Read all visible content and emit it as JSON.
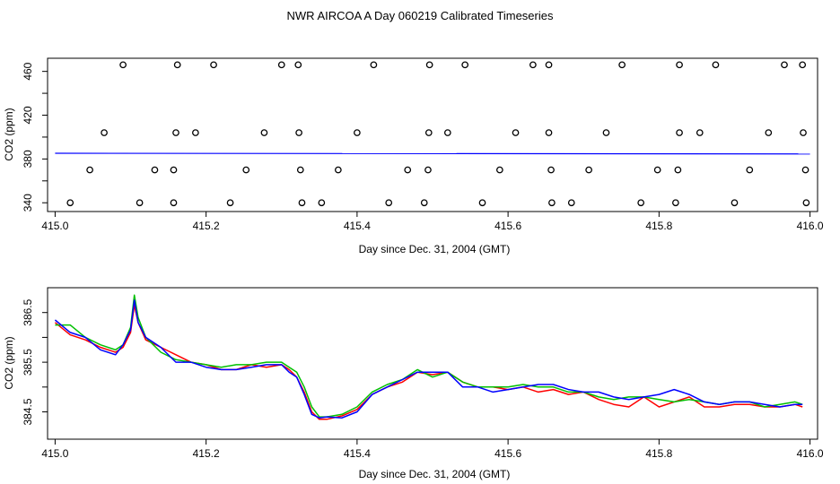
{
  "title": "NWR AIRCOA A  Day 060219  Calibrated Timeseries",
  "colors": {
    "red": "#ff0000",
    "green": "#00c000",
    "blue": "#0000ff",
    "black": "#000000"
  },
  "chart_data": [
    {
      "type": "scatter",
      "name": "raw",
      "xlabel": "Day since Dec. 31, 2004 (GMT)",
      "ylabel": "CO2 (ppm)",
      "xlim": [
        414.99,
        416.01
      ],
      "ylim": [
        332,
        472
      ],
      "xticks": [
        415.0,
        415.2,
        415.4,
        415.6,
        415.8,
        416.0
      ],
      "xtick_labels": [
        "415.0",
        "415.2",
        "415.4",
        "415.6",
        "415.8",
        "416.0"
      ],
      "yticks": [
        340,
        380,
        420,
        460
      ],
      "ytick_labels": [
        "340",
        "380",
        "420",
        "460"
      ],
      "points_x": [
        415.09,
        415.162,
        415.21,
        415.3,
        415.322,
        415.422,
        415.496,
        415.543,
        415.633,
        415.654,
        415.751,
        415.827,
        415.875,
        415.966,
        415.99,
        415.065,
        415.16,
        415.186,
        415.277,
        415.323,
        415.4,
        415.495,
        415.52,
        415.61,
        415.654,
        415.73,
        415.827,
        415.854,
        415.945,
        415.991,
        415.046,
        415.132,
        415.157,
        415.253,
        415.325,
        415.375,
        415.467,
        415.494,
        415.589,
        415.657,
        415.707,
        415.798,
        415.825,
        415.92,
        415.994,
        415.02,
        415.112,
        415.157,
        415.232,
        415.327,
        415.353,
        415.442,
        415.489,
        415.566,
        415.658,
        415.684,
        415.776,
        415.822,
        415.9,
        415.995
      ],
      "points_y": [
        466,
        466,
        466,
        466,
        466,
        466,
        466,
        466,
        466,
        466,
        466,
        466,
        466,
        466,
        466,
        404,
        404,
        404,
        404,
        404,
        404,
        404,
        404,
        404,
        404,
        404,
        404,
        404,
        404,
        404,
        370,
        370,
        370,
        370,
        370,
        370,
        370,
        370,
        370,
        370,
        370,
        370,
        370,
        370,
        370,
        340,
        340,
        340,
        340,
        340,
        340,
        340,
        340,
        340,
        340,
        340,
        340,
        340,
        340,
        340
      ],
      "line_x": [
        415.0,
        416.0
      ],
      "line_y": [
        385.2,
        384.6
      ]
    },
    {
      "type": "line",
      "name": "calibrated",
      "xlabel": "Day since Dec. 31, 2004 (GMT)",
      "ylabel": "CO2 (ppm)",
      "xlim": [
        414.99,
        416.01
      ],
      "ylim": [
        383.95,
        387.0
      ],
      "xticks": [
        415.0,
        415.2,
        415.4,
        415.6,
        415.8,
        416.0
      ],
      "xtick_labels": [
        "415.0",
        "415.2",
        "415.4",
        "415.6",
        "415.8",
        "416.0"
      ],
      "yticks": [
        384.5,
        385.5,
        386.5
      ],
      "ytick_labels": [
        "384.5",
        "385.5",
        "386.5"
      ],
      "x": [
        415.0,
        415.02,
        415.04,
        415.06,
        415.08,
        415.09,
        415.1,
        415.105,
        415.11,
        415.12,
        415.14,
        415.16,
        415.18,
        415.2,
        415.22,
        415.24,
        415.26,
        415.28,
        415.3,
        415.31,
        415.32,
        415.33,
        415.34,
        415.35,
        415.36,
        415.38,
        415.4,
        415.42,
        415.44,
        415.46,
        415.48,
        415.5,
        415.52,
        415.54,
        415.56,
        415.58,
        415.6,
        415.62,
        415.64,
        415.66,
        415.68,
        415.7,
        415.72,
        415.74,
        415.76,
        415.78,
        415.8,
        415.82,
        415.84,
        415.86,
        415.88,
        415.9,
        415.92,
        415.94,
        415.96,
        415.98,
        415.99
      ],
      "series": [
        {
          "name": "red",
          "color": "#ff0000",
          "values": [
            386.3,
            386.05,
            385.95,
            385.8,
            385.7,
            385.8,
            386.1,
            386.65,
            386.3,
            385.95,
            385.8,
            385.65,
            385.5,
            385.45,
            385.35,
            385.35,
            385.45,
            385.4,
            385.45,
            385.35,
            385.2,
            384.9,
            384.5,
            384.35,
            384.35,
            384.42,
            384.55,
            384.85,
            385.0,
            385.1,
            385.3,
            385.25,
            385.3,
            385.1,
            385.0,
            385.0,
            384.95,
            385.0,
            384.9,
            384.95,
            384.85,
            384.9,
            384.75,
            384.65,
            384.6,
            384.8,
            384.6,
            384.7,
            384.8,
            384.6,
            384.6,
            384.65,
            384.65,
            384.6,
            384.6,
            384.65,
            384.6
          ]
        },
        {
          "name": "green",
          "color": "#00c000",
          "values": [
            386.25,
            386.25,
            386.0,
            385.85,
            385.75,
            385.85,
            386.2,
            386.85,
            386.4,
            386.0,
            385.7,
            385.55,
            385.5,
            385.45,
            385.4,
            385.45,
            385.45,
            385.5,
            385.5,
            385.4,
            385.3,
            385.0,
            384.6,
            384.4,
            384.4,
            384.45,
            384.6,
            384.9,
            385.05,
            385.15,
            385.35,
            385.2,
            385.3,
            385.1,
            385.0,
            385.0,
            385.0,
            385.05,
            385.0,
            385.0,
            384.9,
            384.9,
            384.8,
            384.75,
            384.8,
            384.8,
            384.75,
            384.7,
            384.75,
            384.7,
            384.65,
            384.7,
            384.7,
            384.6,
            384.65,
            384.7,
            384.65
          ]
        },
        {
          "name": "blue",
          "color": "#0000ff",
          "values": [
            386.35,
            386.1,
            386.0,
            385.75,
            385.65,
            385.85,
            386.15,
            386.75,
            386.3,
            386.0,
            385.8,
            385.5,
            385.5,
            385.4,
            385.35,
            385.35,
            385.4,
            385.45,
            385.45,
            385.3,
            385.2,
            384.85,
            384.45,
            384.38,
            384.4,
            384.38,
            384.5,
            384.85,
            385.0,
            385.15,
            385.3,
            385.3,
            385.3,
            385.0,
            385.0,
            384.9,
            384.95,
            385.0,
            385.05,
            385.05,
            384.95,
            384.9,
            384.9,
            384.8,
            384.75,
            384.8,
            384.85,
            384.95,
            384.85,
            384.7,
            384.65,
            384.7,
            384.7,
            384.65,
            384.6,
            384.65,
            384.65
          ]
        }
      ]
    }
  ]
}
